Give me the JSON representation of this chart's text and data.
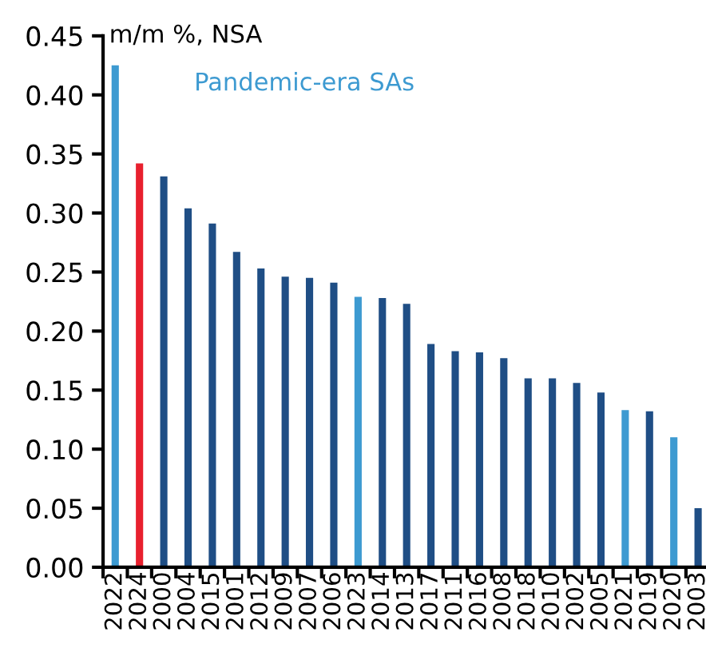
{
  "chart_data": {
    "type": "bar",
    "ylabel": "m/m %, NSA",
    "categories": [
      "2022",
      "2024",
      "2000",
      "2004",
      "2015",
      "2001",
      "2012",
      "2009",
      "2007",
      "2006",
      "2023",
      "2014",
      "2013",
      "2017",
      "2011",
      "2016",
      "2008",
      "2018",
      "2010",
      "2002",
      "2005",
      "2021",
      "2019",
      "2020",
      "2003"
    ],
    "values": [
      0.425,
      0.342,
      0.331,
      0.304,
      0.291,
      0.267,
      0.253,
      0.246,
      0.245,
      0.241,
      0.229,
      0.228,
      0.223,
      0.189,
      0.183,
      0.182,
      0.177,
      0.16,
      0.16,
      0.156,
      0.148,
      0.133,
      0.132,
      0.11,
      0.05
    ],
    "colors": [
      "#3d9ad1",
      "#e8202e",
      "#1f4e85",
      "#1f4e85",
      "#1f4e85",
      "#1f4e85",
      "#1f4e85",
      "#1f4e85",
      "#1f4e85",
      "#1f4e85",
      "#3d9ad1",
      "#1f4e85",
      "#1f4e85",
      "#1f4e85",
      "#1f4e85",
      "#1f4e85",
      "#1f4e85",
      "#1f4e85",
      "#1f4e85",
      "#1f4e85",
      "#1f4e85",
      "#3d9ad1",
      "#1f4e85",
      "#3d9ad1",
      "#1f4e85"
    ],
    "annotations": [
      "Pandemic-era SAs"
    ],
    "ylim": [
      0,
      0.45
    ],
    "yticks": [
      {
        "value": 0,
        "label": "0.00"
      },
      {
        "value": 0.05,
        "label": "0.05"
      },
      {
        "value": 0.1,
        "label": "0.10"
      },
      {
        "value": 0.15,
        "label": "0.15"
      },
      {
        "value": 0.2,
        "label": "0.20"
      },
      {
        "value": 0.25,
        "label": "0.25"
      },
      {
        "value": 0.3,
        "label": "0.30"
      },
      {
        "value": 0.35,
        "label": "0.35"
      },
      {
        "value": 0.4,
        "label": "0.40"
      },
      {
        "value": 0.45,
        "label": "0.45"
      }
    ],
    "grid": false,
    "legend": false
  }
}
